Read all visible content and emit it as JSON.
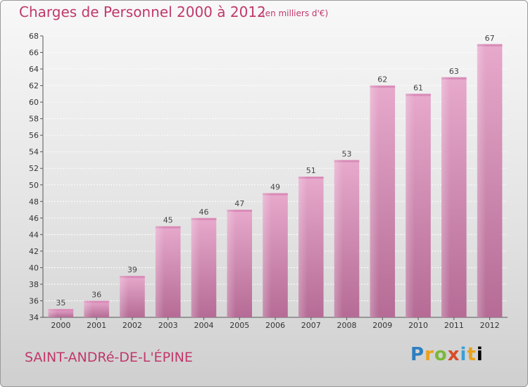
{
  "header": {
    "title": "Charges de Personnel 2000 à 2012",
    "subtitle": "(en milliers d'€)"
  },
  "footer": {
    "town": "SAINT-ANDRé-DE-L'ÉPINE",
    "logo": [
      "P",
      "r",
      "o",
      "x",
      "i",
      "t",
      "i"
    ]
  },
  "chart_data": {
    "type": "bar",
    "title": "Charges de Personnel 2000 à 2012",
    "subtitle": "(en milliers d'€)",
    "categories": [
      "2000",
      "2001",
      "2002",
      "2003",
      "2004",
      "2005",
      "2006",
      "2007",
      "2008",
      "2009",
      "2010",
      "2011",
      "2012"
    ],
    "values": [
      35,
      36,
      39,
      45,
      46,
      47,
      49,
      51,
      53,
      62,
      61,
      63,
      67
    ],
    "ylim": [
      34,
      68
    ],
    "yticks": [
      34,
      36,
      38,
      40,
      42,
      44,
      46,
      48,
      50,
      52,
      54,
      56,
      58,
      60,
      62,
      64,
      66,
      68
    ],
    "grid": true,
    "legend": "none",
    "bar_color": "#c978a6"
  }
}
